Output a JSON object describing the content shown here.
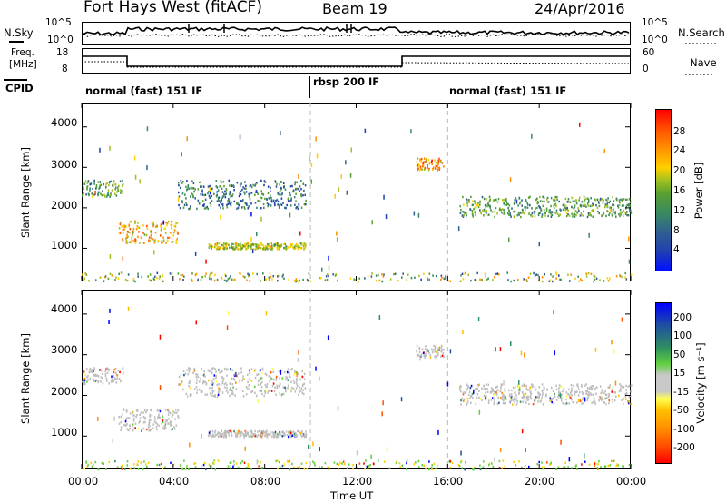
{
  "header": {
    "title": "Fort Hays West (fitACF)",
    "beam": "Beam 19",
    "date": "24/Apr/2016"
  },
  "nsky_panel": {
    "left_label": "N.Sky",
    "left_ticks": [
      "10^5",
      "10^0"
    ],
    "right_ticks": [
      "10^5",
      "10^0"
    ],
    "right_label": "N.Search"
  },
  "freq_panel": {
    "left_label_1": "Freq.",
    "left_label_2": "[MHz]",
    "left_ticks": [
      "18",
      "8"
    ],
    "right_ticks": [
      "60",
      "0"
    ],
    "right_label": "Nave"
  },
  "cpid": {
    "label": "CPID",
    "segments": [
      {
        "text": "normal (fast) 151 IF",
        "start": 0,
        "end": 10
      },
      {
        "text": "rbsp 200 IF",
        "start": 10,
        "end": 16
      },
      {
        "text": "normal (fast) 151 IF",
        "start": 16,
        "end": 24
      }
    ]
  },
  "colors": {
    "power": [
      "#0010ff",
      "#2040b0",
      "#306090",
      "#3a8a60",
      "#5aa030",
      "#a0c020",
      "#ffd000",
      "#ff9000",
      "#ff5000",
      "#ff0000"
    ],
    "velocity": [
      "#ff0000",
      "#ff5000",
      "#ff9000",
      "#ffc000",
      "#ffff50",
      "#c8c8c8",
      "#60d040",
      "#309060",
      "#2050a0",
      "#0000ff"
    ],
    "gray": "#bdbdbd"
  },
  "chart_data": [
    {
      "type": "heatmap",
      "name": "power",
      "ylabel": "Slant Range [km]",
      "yticks": [
        "4000",
        "3000",
        "2000",
        "1000"
      ],
      "ylim": [
        180,
        4600
      ],
      "xlim": [
        0,
        24
      ],
      "colorbar_label": "Power [dB]",
      "colorbar_ticks": [
        "28",
        "24",
        "20",
        "16",
        "12",
        "8",
        "4"
      ],
      "echo_bands": [
        {
          "t": [
            0.0,
            1.8
          ],
          "range": [
            2300,
            2700
          ],
          "value": 12
        },
        {
          "t": [
            1.6,
            4.2
          ],
          "range": [
            1150,
            1700
          ],
          "value": 20
        },
        {
          "t": [
            4.2,
            9.8
          ],
          "range": [
            2000,
            2700
          ],
          "value": 8
        },
        {
          "t": [
            5.5,
            9.8
          ],
          "range": [
            1000,
            1150
          ],
          "value": 16
        },
        {
          "t": [
            14.6,
            15.8
          ],
          "range": [
            2950,
            3250
          ],
          "value": 22
        },
        {
          "t": [
            16.5,
            24.0
          ],
          "range": [
            1800,
            2300
          ],
          "value": 12
        }
      ]
    },
    {
      "type": "heatmap",
      "name": "velocity",
      "ylabel": "Slant Range [km]",
      "yticks": [
        "4000",
        "3000",
        "2000",
        "1000"
      ],
      "ylim": [
        180,
        4600
      ],
      "xlim": [
        0,
        24
      ],
      "xlabel": "Time UT",
      "xticks": [
        "00:00",
        "04:00",
        "08:00",
        "12:00",
        "16:00",
        "20:00",
        "00:00"
      ],
      "colorbar_label": "Velocity [m s⁻¹]",
      "colorbar_ticks": [
        "200",
        "100",
        "50",
        "15",
        "-15",
        "-50",
        "-100",
        "-200"
      ]
    }
  ]
}
